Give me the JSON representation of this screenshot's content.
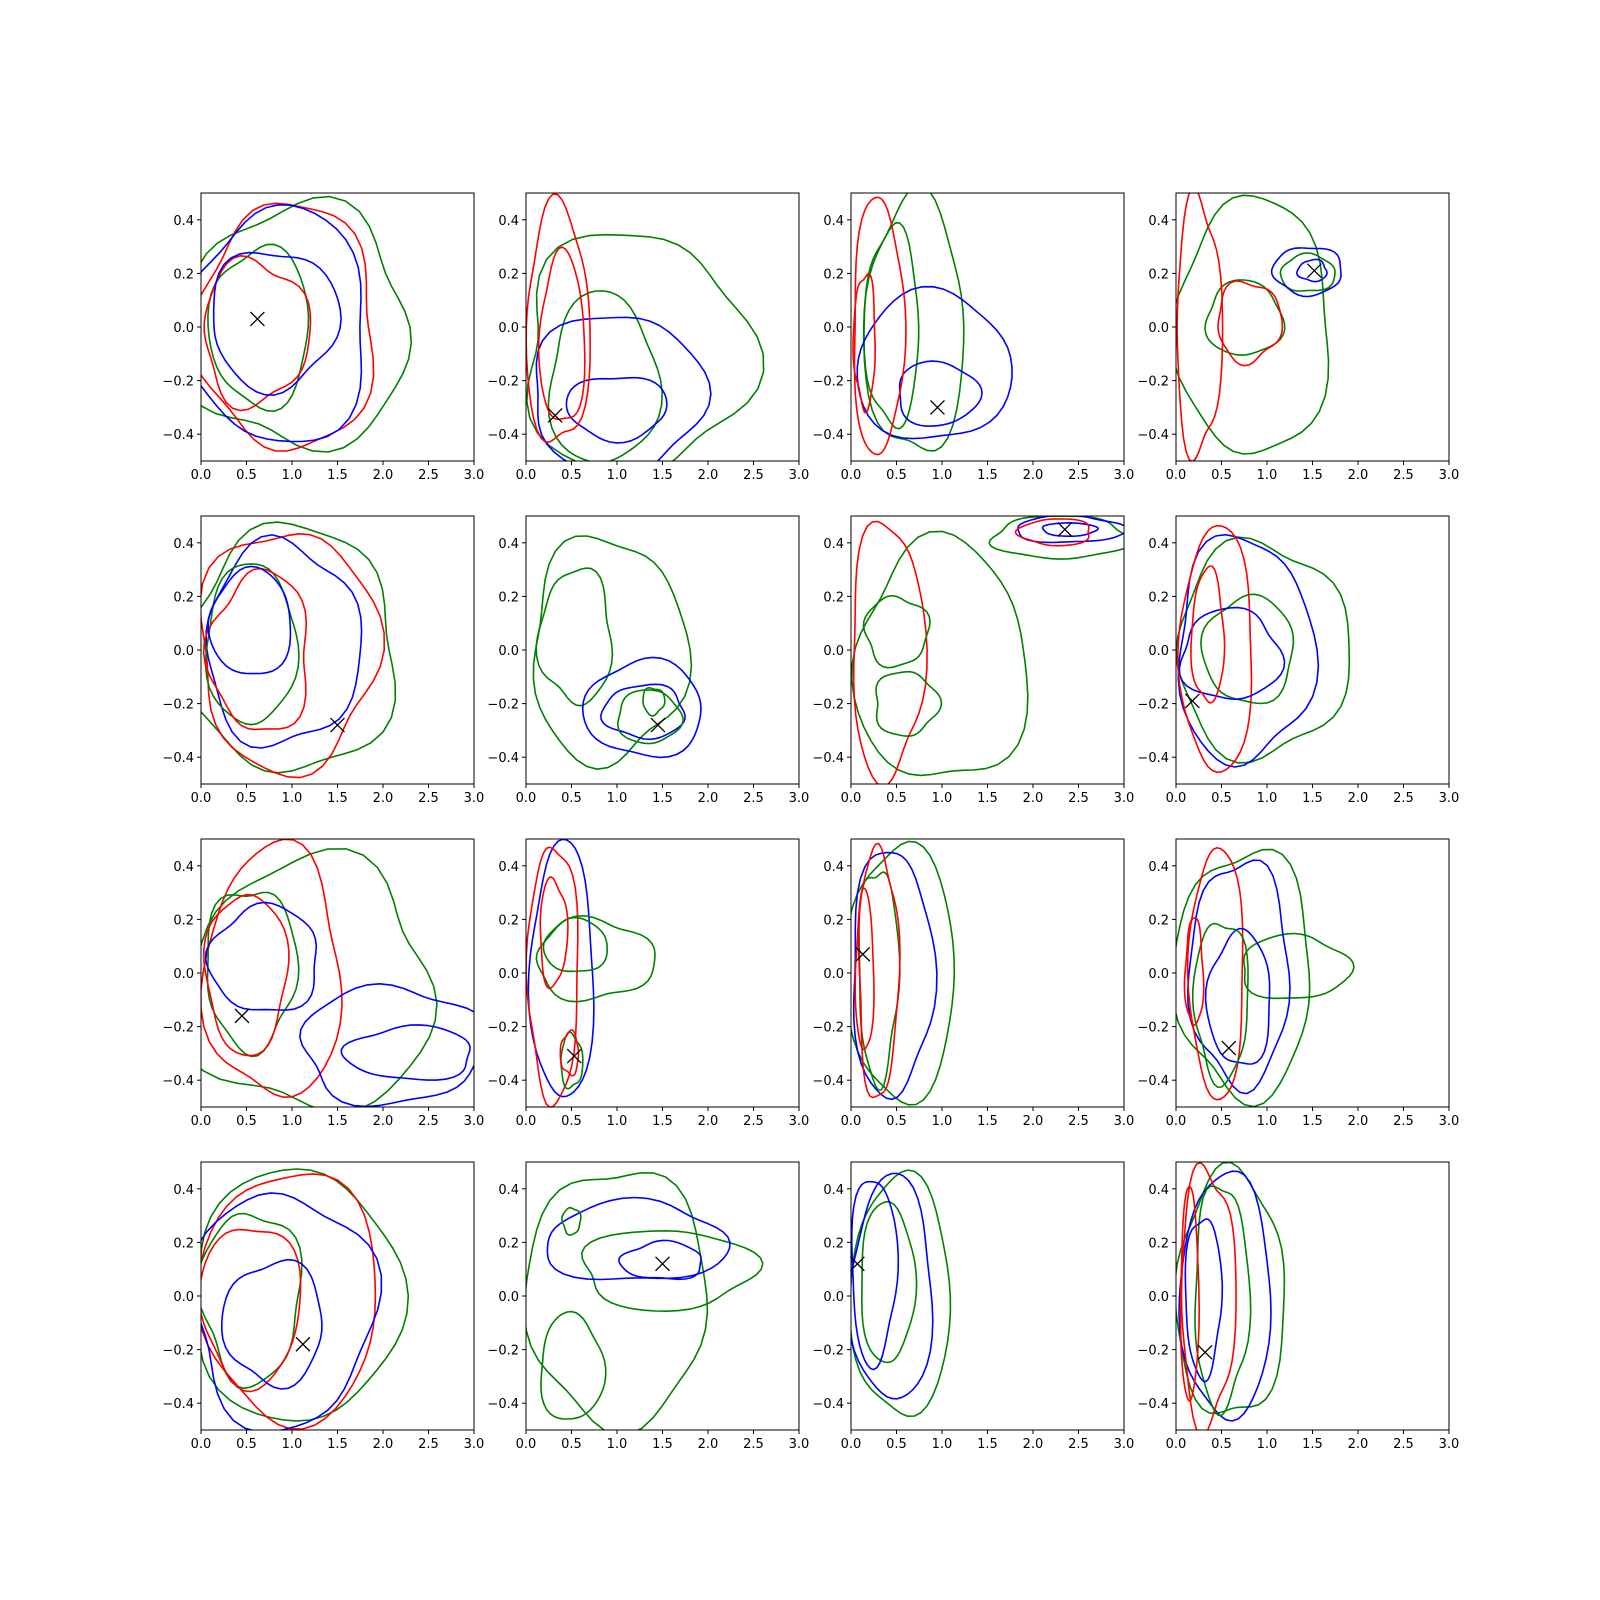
{
  "chart_data": {
    "type": "contour",
    "layout": "4x4 grid",
    "xlim": [
      0,
      3
    ],
    "ylim": [
      -0.5,
      0.5
    ],
    "xticks": [
      "0.0",
      "0.5",
      "1.0",
      "1.5",
      "2.0",
      "2.5",
      "3.0"
    ],
    "yticks": [
      "−0.4",
      "−0.2",
      "0.0",
      "0.2",
      "0.4"
    ],
    "colors": {
      "blue": "#0000ff",
      "green": "#008000",
      "red": "#ff0000",
      "marker": "#000000"
    },
    "marker_symbol": "x",
    "panels": [
      {
        "row": 1,
        "col": 1,
        "marker": [
          0.62,
          0.03
        ],
        "contours": [
          {
            "color": "green",
            "cx": 1.05,
            "cy": 0.0,
            "rx": 1.25,
            "ry": 0.45
          },
          {
            "color": "red",
            "cx": 0.95,
            "cy": 0.0,
            "rx": 0.98,
            "ry": 0.46
          },
          {
            "color": "blue",
            "cx": 0.85,
            "cy": 0.0,
            "rx": 1.0,
            "ry": 0.44
          },
          {
            "color": "green",
            "cx": 0.65,
            "cy": 0.0,
            "rx": 0.55,
            "ry": 0.3
          },
          {
            "color": "red",
            "cx": 0.6,
            "cy": -0.02,
            "rx": 0.58,
            "ry": 0.27
          },
          {
            "color": "blue",
            "cx": 0.8,
            "cy": 0.03,
            "rx": 0.7,
            "ry": 0.26
          }
        ]
      },
      {
        "row": 1,
        "col": 2,
        "marker": [
          0.32,
          -0.33
        ],
        "contours": [
          {
            "color": "green",
            "cx": 1.2,
            "cy": -0.1,
            "rx": 1.25,
            "ry": 0.45
          },
          {
            "color": "green",
            "cx": 0.85,
            "cy": -0.2,
            "rx": 0.6,
            "ry": 0.32
          },
          {
            "color": "blue",
            "cx": 1.0,
            "cy": -0.25,
            "rx": 0.95,
            "ry": 0.3
          },
          {
            "color": "blue",
            "cx": 1.0,
            "cy": -0.3,
            "rx": 0.55,
            "ry": 0.12
          },
          {
            "color": "red",
            "cx": 0.35,
            "cy": 0.0,
            "rx": 0.35,
            "ry": 0.45
          },
          {
            "color": "red",
            "cx": 0.4,
            "cy": -0.05,
            "rx": 0.25,
            "ry": 0.32
          }
        ]
      },
      {
        "row": 1,
        "col": 3,
        "marker": [
          0.95,
          -0.3
        ],
        "contours": [
          {
            "color": "green",
            "cx": 0.7,
            "cy": 0.0,
            "rx": 0.55,
            "ry": 0.48
          },
          {
            "color": "green",
            "cx": 0.45,
            "cy": 0.0,
            "rx": 0.3,
            "ry": 0.37
          },
          {
            "color": "blue",
            "cx": 0.9,
            "cy": -0.15,
            "rx": 0.85,
            "ry": 0.28
          },
          {
            "color": "blue",
            "cx": 0.95,
            "cy": -0.25,
            "rx": 0.45,
            "ry": 0.12
          },
          {
            "color": "red",
            "cx": 0.3,
            "cy": 0.0,
            "rx": 0.28,
            "ry": 0.48
          },
          {
            "color": "red",
            "cx": 0.15,
            "cy": -0.05,
            "rx": 0.12,
            "ry": 0.25
          }
        ]
      },
      {
        "row": 1,
        "col": 4,
        "marker": [
          1.52,
          0.21
        ],
        "contours": [
          {
            "color": "green",
            "cx": 0.85,
            "cy": 0.0,
            "rx": 0.85,
            "ry": 0.48
          },
          {
            "color": "green",
            "cx": 0.75,
            "cy": 0.03,
            "rx": 0.42,
            "ry": 0.14
          },
          {
            "color": "green",
            "cx": 1.45,
            "cy": 0.2,
            "rx": 0.3,
            "ry": 0.07
          },
          {
            "color": "blue",
            "cx": 1.45,
            "cy": 0.21,
            "rx": 0.38,
            "ry": 0.09
          },
          {
            "color": "blue",
            "cx": 1.5,
            "cy": 0.21,
            "rx": 0.16,
            "ry": 0.04
          },
          {
            "color": "red",
            "cx": 0.25,
            "cy": 0.0,
            "rx": 0.25,
            "ry": 0.48
          },
          {
            "color": "red",
            "cx": 0.8,
            "cy": 0.02,
            "rx": 0.35,
            "ry": 0.15
          }
        ]
      },
      {
        "row": 2,
        "col": 1,
        "marker": [
          1.5,
          -0.28
        ],
        "contours": [
          {
            "color": "green",
            "cx": 1.0,
            "cy": 0.0,
            "rx": 1.15,
            "ry": 0.46
          },
          {
            "color": "red",
            "cx": 0.95,
            "cy": 0.0,
            "rx": 0.98,
            "ry": 0.45
          },
          {
            "color": "blue",
            "cx": 0.9,
            "cy": 0.02,
            "rx": 0.85,
            "ry": 0.38
          },
          {
            "color": "green",
            "cx": 0.55,
            "cy": 0.02,
            "rx": 0.5,
            "ry": 0.3
          },
          {
            "color": "red",
            "cx": 0.65,
            "cy": -0.01,
            "rx": 0.55,
            "ry": 0.3
          },
          {
            "color": "blue",
            "cx": 0.55,
            "cy": 0.1,
            "rx": 0.45,
            "ry": 0.2
          }
        ]
      },
      {
        "row": 2,
        "col": 2,
        "marker": [
          1.45,
          -0.28
        ],
        "contours": [
          {
            "color": "green",
            "cx": 0.9,
            "cy": 0.0,
            "rx": 0.85,
            "ry": 0.42
          },
          {
            "color": "green",
            "cx": 0.55,
            "cy": 0.05,
            "rx": 0.4,
            "ry": 0.25
          },
          {
            "color": "blue",
            "cx": 1.3,
            "cy": -0.22,
            "rx": 0.65,
            "ry": 0.18
          },
          {
            "color": "blue",
            "cx": 1.3,
            "cy": -0.23,
            "rx": 0.45,
            "ry": 0.1
          },
          {
            "color": "green",
            "cx": 1.35,
            "cy": -0.25,
            "rx": 0.35,
            "ry": 0.1
          },
          {
            "color": "green",
            "cx": 1.4,
            "cy": -0.19,
            "rx": 0.12,
            "ry": 0.05
          }
        ]
      },
      {
        "row": 2,
        "col": 3,
        "marker": [
          2.35,
          0.45
        ],
        "contours": [
          {
            "color": "green",
            "cx": 1.0,
            "cy": -0.05,
            "rx": 0.95,
            "ry": 0.45
          },
          {
            "color": "green",
            "cx": 2.3,
            "cy": 0.42,
            "rx": 0.75,
            "ry": 0.08
          },
          {
            "color": "blue",
            "cx": 2.4,
            "cy": 0.45,
            "rx": 0.6,
            "ry": 0.05
          },
          {
            "color": "blue",
            "cx": 2.4,
            "cy": 0.45,
            "rx": 0.3,
            "ry": 0.025
          },
          {
            "color": "red",
            "cx": 2.25,
            "cy": 0.44,
            "rx": 0.4,
            "ry": 0.05
          },
          {
            "color": "red",
            "cx": 0.4,
            "cy": 0.0,
            "rx": 0.4,
            "ry": 0.48
          },
          {
            "color": "green",
            "cx": 0.5,
            "cy": 0.07,
            "rx": 0.35,
            "ry": 0.13
          },
          {
            "color": "green",
            "cx": 0.6,
            "cy": -0.2,
            "rx": 0.35,
            "ry": 0.12
          }
        ]
      },
      {
        "row": 2,
        "col": 4,
        "marker": [
          0.18,
          -0.19
        ],
        "contours": [
          {
            "color": "green",
            "cx": 0.95,
            "cy": 0.0,
            "rx": 0.95,
            "ry": 0.4
          },
          {
            "color": "blue",
            "cx": 0.75,
            "cy": 0.0,
            "rx": 0.75,
            "ry": 0.42
          },
          {
            "color": "red",
            "cx": 0.45,
            "cy": 0.0,
            "rx": 0.4,
            "ry": 0.46
          },
          {
            "color": "green",
            "cx": 0.8,
            "cy": 0.0,
            "rx": 0.5,
            "ry": 0.2
          },
          {
            "color": "blue",
            "cx": 0.6,
            "cy": -0.02,
            "rx": 0.55,
            "ry": 0.17
          },
          {
            "color": "red",
            "cx": 0.35,
            "cy": 0.05,
            "rx": 0.18,
            "ry": 0.25
          }
        ]
      },
      {
        "row": 3,
        "col": 1,
        "marker": [
          0.45,
          -0.16
        ],
        "contours": [
          {
            "color": "green",
            "cx": 1.2,
            "cy": -0.05,
            "rx": 1.35,
            "ry": 0.47
          },
          {
            "color": "red",
            "cx": 0.8,
            "cy": 0.0,
            "rx": 0.75,
            "ry": 0.47
          },
          {
            "color": "green",
            "cx": 0.55,
            "cy": 0.02,
            "rx": 0.5,
            "ry": 0.3
          },
          {
            "color": "red",
            "cx": 0.5,
            "cy": 0.0,
            "rx": 0.45,
            "ry": 0.3
          },
          {
            "color": "blue",
            "cx": 2.1,
            "cy": -0.27,
            "rx": 1.0,
            "ry": 0.22
          },
          {
            "color": "blue",
            "cx": 2.3,
            "cy": -0.3,
            "rx": 0.7,
            "ry": 0.1
          },
          {
            "color": "blue",
            "cx": 0.7,
            "cy": 0.05,
            "rx": 0.6,
            "ry": 0.2
          }
        ]
      },
      {
        "row": 3,
        "col": 2,
        "marker": [
          0.53,
          -0.31
        ],
        "contours": [
          {
            "color": "blue",
            "cx": 0.4,
            "cy": 0.0,
            "rx": 0.35,
            "ry": 0.48
          },
          {
            "color": "red",
            "cx": 0.3,
            "cy": 0.0,
            "rx": 0.28,
            "ry": 0.48
          },
          {
            "color": "green",
            "cx": 0.75,
            "cy": 0.05,
            "rx": 0.65,
            "ry": 0.15
          },
          {
            "color": "green",
            "cx": 0.55,
            "cy": 0.1,
            "rx": 0.35,
            "ry": 0.1
          },
          {
            "color": "red",
            "cx": 0.3,
            "cy": 0.15,
            "rx": 0.15,
            "ry": 0.2
          },
          {
            "color": "green",
            "cx": 0.5,
            "cy": -0.33,
            "rx": 0.12,
            "ry": 0.1
          },
          {
            "color": "red",
            "cx": 0.48,
            "cy": -0.3,
            "rx": 0.1,
            "ry": 0.08
          }
        ]
      },
      {
        "row": 3,
        "col": 3,
        "marker": [
          0.13,
          0.07
        ],
        "contours": [
          {
            "color": "green",
            "cx": 0.55,
            "cy": 0.0,
            "rx": 0.6,
            "ry": 0.48
          },
          {
            "color": "blue",
            "cx": 0.45,
            "cy": 0.0,
            "rx": 0.45,
            "ry": 0.46
          },
          {
            "color": "green",
            "cx": 0.3,
            "cy": 0.0,
            "rx": 0.22,
            "ry": 0.4
          },
          {
            "color": "red",
            "cx": 0.3,
            "cy": 0.0,
            "rx": 0.22,
            "ry": 0.47
          },
          {
            "color": "red",
            "cx": 0.15,
            "cy": 0.0,
            "rx": 0.1,
            "ry": 0.3
          }
        ]
      },
      {
        "row": 3,
        "col": 4,
        "marker": [
          0.58,
          -0.28
        ],
        "contours": [
          {
            "color": "green",
            "cx": 0.75,
            "cy": 0.0,
            "rx": 0.75,
            "ry": 0.46
          },
          {
            "color": "green",
            "cx": 1.3,
            "cy": 0.02,
            "rx": 0.6,
            "ry": 0.12
          },
          {
            "color": "blue",
            "cx": 0.7,
            "cy": 0.0,
            "rx": 0.55,
            "ry": 0.42
          },
          {
            "color": "red",
            "cx": 0.45,
            "cy": 0.0,
            "rx": 0.3,
            "ry": 0.47
          },
          {
            "color": "blue",
            "cx": 0.7,
            "cy": -0.1,
            "rx": 0.35,
            "ry": 0.25
          },
          {
            "color": "green",
            "cx": 0.5,
            "cy": -0.1,
            "rx": 0.3,
            "ry": 0.3
          },
          {
            "color": "red",
            "cx": 0.2,
            "cy": 0.0,
            "rx": 0.1,
            "ry": 0.2
          }
        ]
      },
      {
        "row": 4,
        "col": 1,
        "marker": [
          1.12,
          -0.18
        ],
        "contours": [
          {
            "color": "green",
            "cx": 1.05,
            "cy": 0.0,
            "rx": 1.15,
            "ry": 0.47
          },
          {
            "color": "red",
            "cx": 0.98,
            "cy": 0.0,
            "rx": 0.98,
            "ry": 0.47
          },
          {
            "color": "blue",
            "cx": 0.9,
            "cy": -0.05,
            "rx": 1.0,
            "ry": 0.44
          },
          {
            "color": "green",
            "cx": 0.55,
            "cy": 0.0,
            "rx": 0.55,
            "ry": 0.32
          },
          {
            "color": "red",
            "cx": 0.55,
            "cy": -0.03,
            "rx": 0.55,
            "ry": 0.3
          },
          {
            "color": "blue",
            "cx": 0.8,
            "cy": -0.1,
            "rx": 0.55,
            "ry": 0.23
          }
        ]
      },
      {
        "row": 4,
        "col": 2,
        "marker": [
          1.5,
          0.12
        ],
        "contours": [
          {
            "color": "green",
            "cx": 1.0,
            "cy": 0.0,
            "rx": 1.0,
            "ry": 0.48
          },
          {
            "color": "green",
            "cx": 1.55,
            "cy": 0.1,
            "rx": 0.95,
            "ry": 0.15
          },
          {
            "color": "blue",
            "cx": 1.2,
            "cy": 0.2,
            "rx": 1.0,
            "ry": 0.15
          },
          {
            "color": "blue",
            "cx": 1.5,
            "cy": 0.13,
            "rx": 0.45,
            "ry": 0.07
          },
          {
            "color": "green",
            "cx": 0.5,
            "cy": -0.27,
            "rx": 0.35,
            "ry": 0.2
          },
          {
            "color": "green",
            "cx": 0.5,
            "cy": 0.28,
            "rx": 0.1,
            "ry": 0.05
          }
        ]
      },
      {
        "row": 4,
        "col": 3,
        "marker": [
          0.07,
          0.12
        ],
        "contours": [
          {
            "color": "green",
            "cx": 0.55,
            "cy": 0.0,
            "rx": 0.55,
            "ry": 0.45
          },
          {
            "color": "blue",
            "cx": 0.45,
            "cy": 0.02,
            "rx": 0.45,
            "ry": 0.42
          },
          {
            "color": "green",
            "cx": 0.4,
            "cy": 0.05,
            "rx": 0.3,
            "ry": 0.3
          },
          {
            "color": "blue",
            "cx": 0.25,
            "cy": 0.1,
            "rx": 0.25,
            "ry": 0.35
          }
        ]
      },
      {
        "row": 4,
        "col": 4,
        "marker": [
          0.32,
          -0.21
        ],
        "contours": [
          {
            "color": "green",
            "cx": 0.6,
            "cy": 0.0,
            "rx": 0.6,
            "ry": 0.46
          },
          {
            "color": "blue",
            "cx": 0.55,
            "cy": 0.0,
            "rx": 0.5,
            "ry": 0.46
          },
          {
            "color": "red",
            "cx": 0.35,
            "cy": 0.0,
            "rx": 0.3,
            "ry": 0.48
          },
          {
            "color": "green",
            "cx": 0.5,
            "cy": 0.0,
            "rx": 0.3,
            "ry": 0.42
          },
          {
            "color": "blue",
            "cx": 0.3,
            "cy": 0.0,
            "rx": 0.2,
            "ry": 0.3
          },
          {
            "color": "red",
            "cx": 0.15,
            "cy": 0.0,
            "rx": 0.1,
            "ry": 0.4
          }
        ]
      }
    ]
  }
}
